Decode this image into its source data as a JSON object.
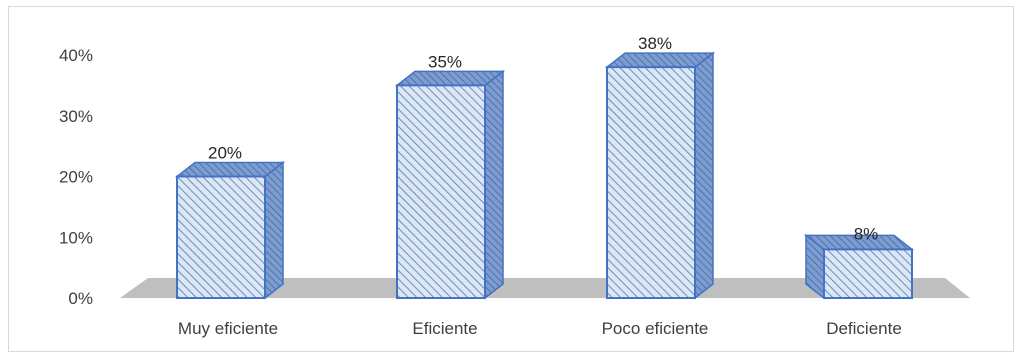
{
  "chart_data": {
    "type": "bar",
    "style": "3d-column",
    "categories": [
      "Muy eficiente",
      "Eficiente",
      "Poco eficiente",
      "Deficiente"
    ],
    "values": [
      20,
      35,
      38,
      8
    ],
    "data_labels": [
      "20%",
      "35%",
      "38%",
      "8%"
    ],
    "title": "",
    "xlabel": "",
    "ylabel": "",
    "ylim": [
      0,
      40
    ],
    "yticks": [
      0,
      10,
      20,
      30,
      40
    ],
    "ytick_labels": [
      "0%",
      "10%",
      "20%",
      "30%",
      "40%"
    ],
    "grid": false,
    "legend": "none",
    "colors": {
      "bar_fill": "#dde7f4",
      "bar_hatch": "#4a78b8",
      "bar_edge": "#4472c4",
      "bar_top": "#8faad6",
      "bar_side": "#7d9ccf",
      "floor": "#bfbfbf",
      "frame": "#d9d9d9"
    }
  }
}
